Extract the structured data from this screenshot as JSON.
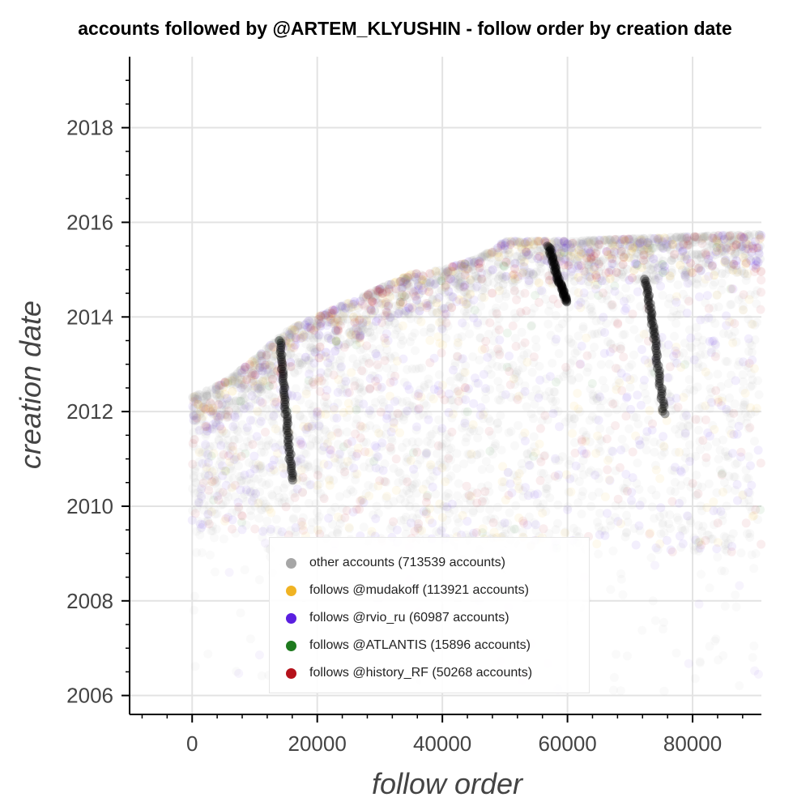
{
  "chart_data": {
    "type": "scatter",
    "title": "accounts followed by @ARTEM_KLYUSHIN - follow order by creation date",
    "xlabel": "follow order",
    "ylabel": "creation date",
    "xlim": [
      -10000,
      91000
    ],
    "ylim": [
      2005.6,
      2019.5
    ],
    "x_ticks": [
      0,
      20000,
      40000,
      60000,
      80000
    ],
    "y_ticks": [
      2006,
      2008,
      2010,
      2012,
      2014,
      2016,
      2018
    ],
    "grid": true,
    "legend_position": "bottom-center",
    "upper_envelope": [
      [
        0,
        2012.3
      ],
      [
        5000,
        2012.6
      ],
      [
        10000,
        2013.1
      ],
      [
        15000,
        2013.7
      ],
      [
        20000,
        2014.0
      ],
      [
        25000,
        2014.3
      ],
      [
        30000,
        2014.6
      ],
      [
        35000,
        2014.9
      ],
      [
        40000,
        2015.0
      ],
      [
        45000,
        2015.2
      ],
      [
        48000,
        2015.4
      ],
      [
        50000,
        2015.6
      ],
      [
        55000,
        2015.6
      ],
      [
        60000,
        2015.6
      ],
      [
        70000,
        2015.65
      ],
      [
        80000,
        2015.7
      ],
      [
        90000,
        2015.75
      ]
    ],
    "dense_lower_bound": [
      [
        0,
        2009.5
      ],
      [
        20000,
        2009.3
      ],
      [
        40000,
        2009.2
      ],
      [
        60000,
        2009.1
      ],
      [
        80000,
        2009.0
      ],
      [
        90000,
        2009.0
      ]
    ],
    "streaks": [
      {
        "series": "follows @rvio_ru",
        "points": [
          [
            57000,
            2015.5
          ],
          [
            58500,
            2014.8
          ],
          [
            60000,
            2014.3
          ]
        ]
      },
      {
        "series": "follows @rvio_ru",
        "points": [
          [
            72500,
            2014.8
          ],
          [
            74000,
            2013.5
          ],
          [
            75500,
            2011.9
          ]
        ]
      },
      {
        "series": "follows @rvio_ru",
        "points": [
          [
            14000,
            2013.5
          ],
          [
            15000,
            2012.0
          ],
          [
            16000,
            2010.5
          ]
        ]
      }
    ],
    "series": [
      {
        "name": "other accounts (713539 accounts)",
        "color": "#a6a6a6",
        "count": 713539
      },
      {
        "name": "follows @mudakoff (113921 accounts)",
        "color": "#f0b323",
        "count": 113921
      },
      {
        "name": "follows @rvio_ru (60987 accounts)",
        "color": "#5a1fe0",
        "count": 60987
      },
      {
        "name": "follows @ATLANTIS (15896 accounts)",
        "color": "#1e7a1e",
        "count": 15896
      },
      {
        "name": "follows @history_RF (50268 accounts)",
        "color": "#b5121b",
        "count": 50268
      }
    ]
  }
}
